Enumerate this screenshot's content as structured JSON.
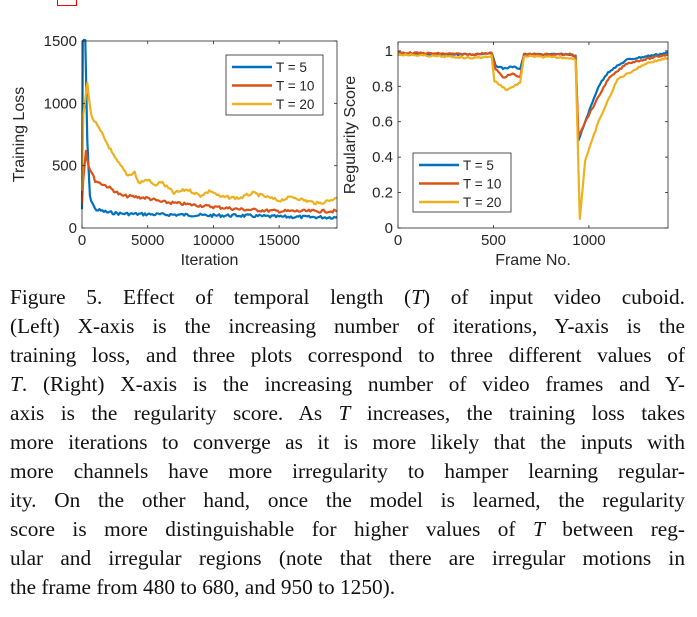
{
  "colors": {
    "T5": "#0072BD",
    "T10": "#D95319",
    "T20": "#EDB120",
    "axis": "#262626",
    "cite_box": "#ee0000"
  },
  "chart_data": [
    {
      "type": "line",
      "xlabel": "Iteration",
      "ylabel": "Training Loss",
      "xlim": [
        0,
        19400
      ],
      "ylim": [
        0,
        1500
      ],
      "xticks": [
        0,
        5000,
        10000,
        15000
      ],
      "yticks": [
        0,
        500,
        1000,
        1500
      ],
      "legend_position": "top-right",
      "grid": false,
      "series": [
        {
          "name": "T = 5",
          "color_key": "T5",
          "points": [
            [
              0,
              150
            ],
            [
              60,
              1500
            ],
            [
              250,
              1500
            ],
            [
              400,
              700
            ],
            [
              600,
              250
            ],
            [
              1000,
              150
            ],
            [
              2000,
              125
            ],
            [
              3000,
              115
            ],
            [
              5000,
              110
            ],
            [
              8000,
              105
            ],
            [
              10000,
              100
            ],
            [
              12000,
              100
            ],
            [
              15000,
              90
            ],
            [
              19400,
              85
            ]
          ]
        },
        {
          "name": "T = 10",
          "color_key": "T10",
          "points": [
            [
              0,
              200
            ],
            [
              100,
              400
            ],
            [
              300,
              620
            ],
            [
              500,
              500
            ],
            [
              1000,
              380
            ],
            [
              2000,
              330
            ],
            [
              3000,
              260
            ],
            [
              4000,
              250
            ],
            [
              5000,
              240
            ],
            [
              6000,
              210
            ],
            [
              8000,
              190
            ],
            [
              10000,
              170
            ],
            [
              12000,
              150
            ],
            [
              15000,
              135
            ],
            [
              19400,
              135
            ]
          ]
        },
        {
          "name": "T = 20",
          "color_key": "T20",
          "points": [
            [
              0,
              300
            ],
            [
              100,
              900
            ],
            [
              400,
              1160
            ],
            [
              700,
              900
            ],
            [
              1500,
              760
            ],
            [
              2500,
              560
            ],
            [
              3500,
              420
            ],
            [
              4000,
              450
            ],
            [
              4300,
              360
            ],
            [
              5000,
              390
            ],
            [
              5500,
              340
            ],
            [
              6000,
              370
            ],
            [
              7000,
              280
            ],
            [
              8000,
              310
            ],
            [
              9000,
              260
            ],
            [
              9800,
              300
            ],
            [
              10500,
              250
            ],
            [
              12000,
              240
            ],
            [
              13000,
              280
            ],
            [
              14000,
              250
            ],
            [
              15000,
              220
            ],
            [
              16000,
              250
            ],
            [
              17000,
              220
            ],
            [
              18000,
              195
            ],
            [
              19400,
              240
            ]
          ]
        }
      ]
    },
    {
      "type": "line",
      "xlabel": "Frame No.",
      "ylabel": "Regularity Score",
      "xlim": [
        0,
        1414
      ],
      "ylim": [
        0,
        1.05
      ],
      "xticks": [
        0,
        500,
        1000
      ],
      "yticks": [
        0,
        0.2,
        0.4,
        0.6,
        0.8,
        1
      ],
      "ytick_labels": [
        "0",
        "0.2",
        "0.4",
        "0.6",
        "0.8",
        "1"
      ],
      "legend_position": "bottom-left",
      "grid": false,
      "series": [
        {
          "name": "T = 5",
          "color_key": "T5",
          "points": [
            [
              0,
              0.98
            ],
            [
              400,
              0.98
            ],
            [
              490,
              0.99
            ],
            [
              510,
              0.92
            ],
            [
              550,
              0.9
            ],
            [
              600,
              0.91
            ],
            [
              640,
              0.9
            ],
            [
              660,
              0.98
            ],
            [
              900,
              0.98
            ],
            [
              930,
              0.97
            ],
            [
              945,
              0.49
            ],
            [
              980,
              0.6
            ],
            [
              1050,
              0.8
            ],
            [
              1100,
              0.88
            ],
            [
              1200,
              0.95
            ],
            [
              1414,
              0.99
            ]
          ]
        },
        {
          "name": "T = 10",
          "color_key": "T10",
          "points": [
            [
              0,
              0.99
            ],
            [
              400,
              0.98
            ],
            [
              490,
              0.99
            ],
            [
              510,
              0.9
            ],
            [
              550,
              0.85
            ],
            [
              600,
              0.87
            ],
            [
              640,
              0.85
            ],
            [
              660,
              0.98
            ],
            [
              900,
              0.98
            ],
            [
              930,
              0.97
            ],
            [
              945,
              0.52
            ],
            [
              1000,
              0.64
            ],
            [
              1100,
              0.84
            ],
            [
              1200,
              0.93
            ],
            [
              1414,
              0.98
            ]
          ]
        },
        {
          "name": "T = 20",
          "color_key": "T20",
          "points": [
            [
              0,
              0.98
            ],
            [
              400,
              0.96
            ],
            [
              490,
              0.97
            ],
            [
              505,
              0.83
            ],
            [
              570,
              0.78
            ],
            [
              640,
              0.82
            ],
            [
              660,
              0.97
            ],
            [
              900,
              0.96
            ],
            [
              930,
              0.95
            ],
            [
              952,
              0.05
            ],
            [
              980,
              0.38
            ],
            [
              1050,
              0.6
            ],
            [
              1150,
              0.84
            ],
            [
              1300,
              0.93
            ],
            [
              1414,
              0.96
            ]
          ]
        }
      ]
    }
  ],
  "caption": {
    "lines": [
      [
        {
          "t": "Figure 5. Effect of temporal length ("
        },
        {
          "t": "T",
          "i": true
        },
        {
          "t": ") of input video cuboid."
        }
      ],
      [
        {
          "t": "(Left) X-axis is the increasing number of iterations, Y-axis is the"
        }
      ],
      [
        {
          "t": "training loss, and three plots correspond to three different values of"
        }
      ],
      [
        {
          "t": "T",
          "i": true
        },
        {
          "t": ". (Right) X-axis is the increasing number of video frames and Y-"
        }
      ],
      [
        {
          "t": "axis is the regularity score. As "
        },
        {
          "t": "T",
          "i": true
        },
        {
          "t": " increases, the training loss takes"
        }
      ],
      [
        {
          "t": "more iterations to converge as it is more likely that the inputs with"
        }
      ],
      [
        {
          "t": "more channels have more irregularity to hamper learning regular-"
        }
      ],
      [
        {
          "t": "ity.  On the other hand, once the model is learned, the regularity"
        }
      ],
      [
        {
          "t": "score is more distinguishable for higher values of "
        },
        {
          "t": "T",
          "i": true
        },
        {
          "t": " between reg-"
        }
      ],
      [
        {
          "t": "ular and irregular regions (note that there are irregular motions in"
        }
      ],
      [
        {
          "t": "the frame from 480 to 680, and 950 to 1250)."
        }
      ]
    ]
  }
}
